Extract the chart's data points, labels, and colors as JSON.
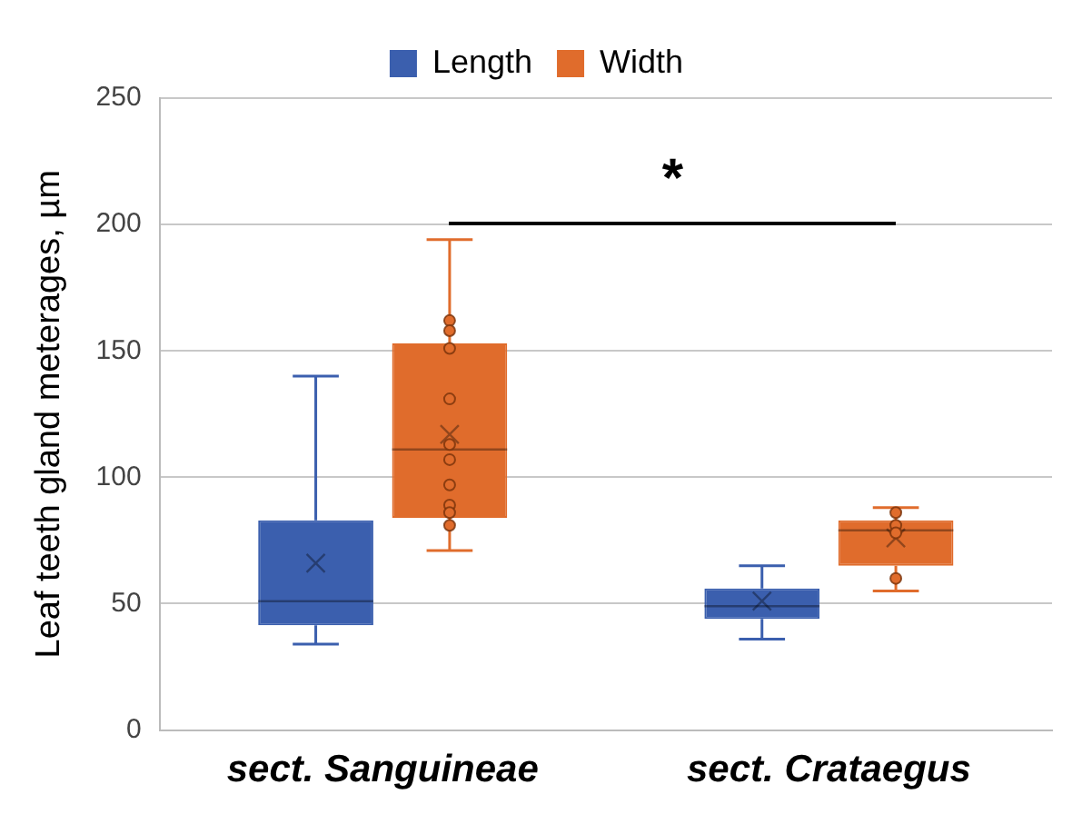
{
  "chart_data": {
    "type": "box",
    "ylabel": "Leaf teeth gland meterages, µm",
    "categories": [
      "sect. Sanguineae",
      "sect. Crataegus"
    ],
    "series": [
      {
        "name": "Length",
        "color": "#3b5fae",
        "boxes": [
          {
            "low": 34,
            "q1": 41.5,
            "median": 51,
            "q3": 83,
            "high": 140,
            "mean": 66
          },
          {
            "low": 36,
            "q1": 44,
            "median": 49,
            "q3": 56,
            "high": 65,
            "mean": 51
          }
        ]
      },
      {
        "name": "Width",
        "color": "#e06c2c",
        "boxes": [
          {
            "low": 71,
            "q1": 84,
            "median": 111,
            "q3": 153,
            "high": 194,
            "mean": 117
          },
          {
            "low": 55,
            "q1": 65,
            "median": 79,
            "q3": 83,
            "high": 88,
            "mean": 76
          }
        ]
      },
      {
        "type": "scatter",
        "color": "#e06c2c",
        "x": [
          "sect. Sanguineae",
          "sect. Sanguineae",
          "sect. Sanguineae",
          "sect. Sanguineae",
          "sect. Sanguineae",
          "sect. Sanguineae",
          "sect. Sanguineae",
          "sect. Sanguineae",
          "sect. Sanguineae",
          "sect. Sanguineae",
          "sect. Crataegus",
          "sect. Crataegus",
          "sect. Crataegus",
          "sect. Crataegus"
        ],
        "values": [
          162,
          158,
          151,
          131,
          113,
          107,
          97,
          89,
          86,
          81,
          86,
          81,
          78,
          60
        ]
      }
    ],
    "ylim": [
      0,
      250
    ],
    "yticks": [
      0,
      50,
      100,
      150,
      200,
      250
    ],
    "grid": "y",
    "legend": "top",
    "marker": "circle",
    "annotations": [
      "*"
    ]
  }
}
